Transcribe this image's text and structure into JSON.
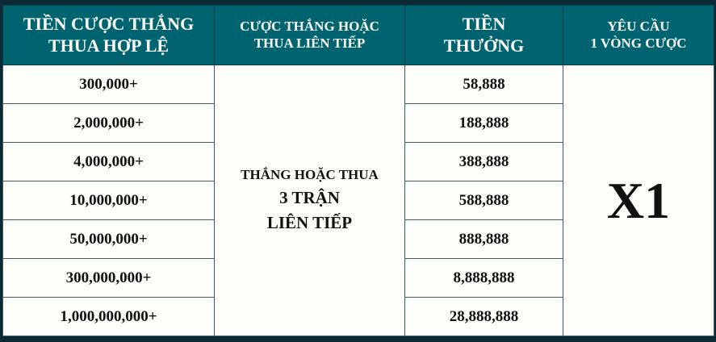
{
  "headers": {
    "valid_bet": [
      "TIỀN CƯỢC THẮNG",
      "THUA HỢP LỆ"
    ],
    "streak": [
      "CƯỢC THẮNG HOẶC",
      "THUA LIÊN TIẾP"
    ],
    "bonus": [
      "TIỀN",
      "THƯỞNG"
    ],
    "requirement": [
      "YÊU CẦU",
      "1 VÒNG CƯỢC"
    ]
  },
  "streak_text": [
    "THẮNG HOẶC THUA",
    "3 TRẬN",
    "LIÊN TIẾP"
  ],
  "multiplier": "X1",
  "rows": [
    {
      "bet": "300,000+",
      "bonus": "58,888"
    },
    {
      "bet": "2,000,000+",
      "bonus": "188,888"
    },
    {
      "bet": "4,000,000+",
      "bonus": "388,888"
    },
    {
      "bet": "10,000,000+",
      "bonus": "588,888"
    },
    {
      "bet": "50,000,000+",
      "bonus": "888,888"
    },
    {
      "bet": "300,000,000+",
      "bonus": "8,888,888"
    },
    {
      "bet": "1,000,000,000+",
      "bonus": "28,888,888"
    }
  ],
  "colors": {
    "header_bg": "#006470",
    "page_bg": "#0c2a33",
    "cell_bg": "#fdfdf9"
  }
}
